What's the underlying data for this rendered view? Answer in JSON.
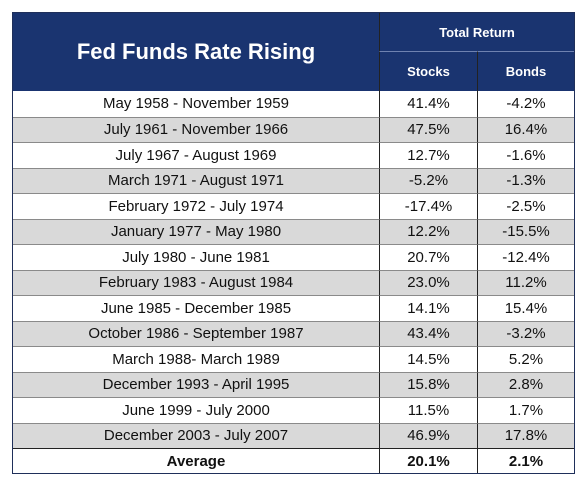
{
  "header": {
    "title": "Fed Funds Rate Rising",
    "group": "Total Return",
    "columns": [
      "Stocks",
      "Bonds"
    ]
  },
  "table": {
    "rows": [
      [
        "May 1958 - November 1959",
        "41.4%",
        "-4.2%"
      ],
      [
        "July 1961 - November 1966",
        "47.5%",
        "16.4%"
      ],
      [
        "July 1967 - August 1969",
        "12.7%",
        "-1.6%"
      ],
      [
        "March 1971 - August 1971",
        "-5.2%",
        "-1.3%"
      ],
      [
        "February 1972 - July 1974",
        "-17.4%",
        "-2.5%"
      ],
      [
        "January 1977 - May 1980",
        "12.2%",
        "-15.5%"
      ],
      [
        "July 1980 - June 1981",
        "20.7%",
        "-12.4%"
      ],
      [
        "February 1983 - August 1984",
        "23.0%",
        "11.2%"
      ],
      [
        "June 1985 - December 1985",
        "14.1%",
        "15.4%"
      ],
      [
        "October 1986 - September 1987",
        "43.4%",
        "-3.2%"
      ],
      [
        "March 1988- March 1989",
        "14.5%",
        "5.2%"
      ],
      [
        "December 1993 - April 1995",
        "15.8%",
        "2.8%"
      ],
      [
        "June 1999 - July 2000",
        "11.5%",
        "1.7%"
      ],
      [
        "December 2003 - July 2007",
        "46.9%",
        "17.8%"
      ]
    ],
    "footer": [
      "Average",
      "20.1%",
      "2.1%"
    ]
  }
}
